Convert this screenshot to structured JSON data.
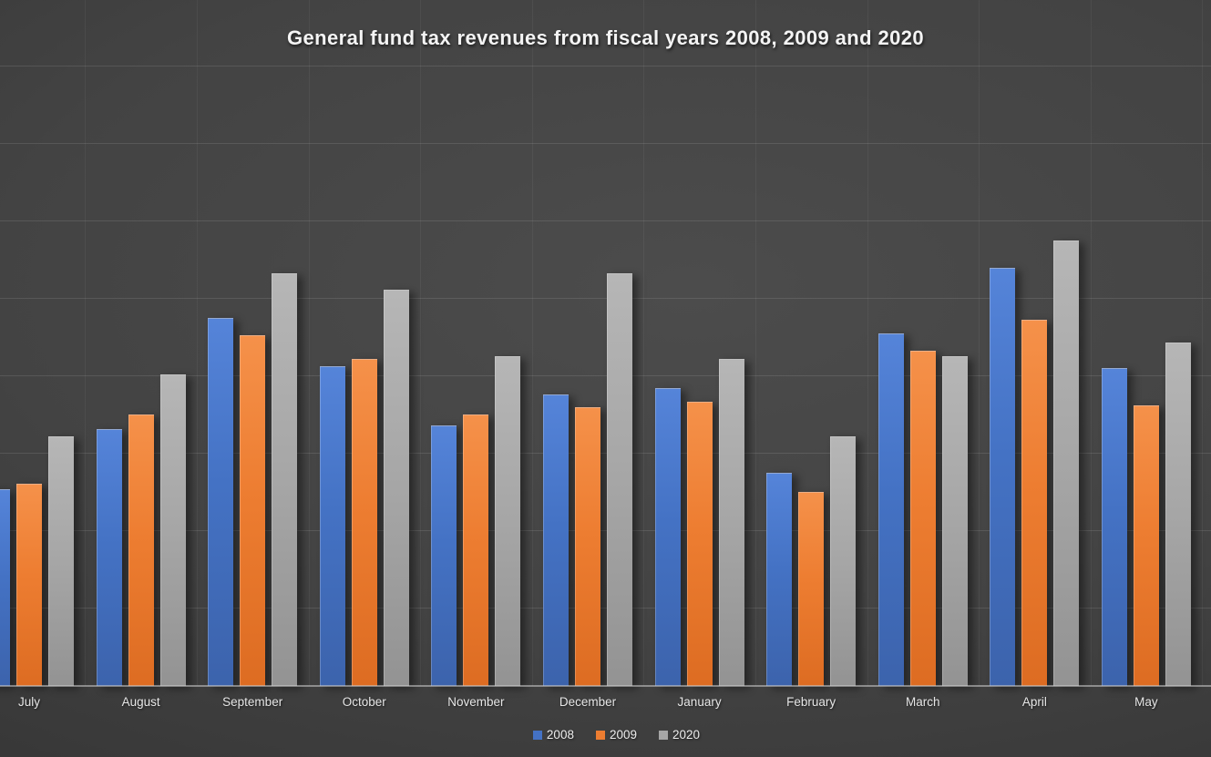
{
  "chart_data": {
    "type": "bar",
    "title": "General fund tax revenues from fiscal years 2008, 2009 and 2020",
    "categories": [
      "July",
      "August",
      "September",
      "October",
      "November",
      "December",
      "January",
      "February",
      "March",
      "April",
      "May"
    ],
    "series": [
      {
        "name": "2008",
        "color": "#4472C4",
        "values": [
          2.53,
          3.31,
          4.74,
          4.12,
          3.35,
          3.75,
          3.84,
          2.74,
          4.54,
          5.39,
          4.09
        ]
      },
      {
        "name": "2009",
        "color": "#ED7D31",
        "values": [
          2.6,
          3.49,
          4.52,
          4.21,
          3.49,
          3.59,
          3.66,
          2.49,
          4.32,
          4.72,
          3.61
        ]
      },
      {
        "name": "2020",
        "color": "#A6A6A6",
        "values": [
          3.21,
          4.01,
          5.32,
          5.11,
          4.25,
          5.32,
          4.21,
          3.21,
          4.25,
          5.74,
          4.42
        ]
      }
    ],
    "xlabel": "",
    "ylabel": "",
    "ylim": [
      0,
      8.85
    ],
    "gridline_interval": 1,
    "grid": "horizontal-major-and-faint-vertical",
    "legend_position": "bottom",
    "value_axis_labels_visible": false,
    "units": "gridline intervals (no value-axis labels shown in image)"
  },
  "colors": {
    "background": "#424242",
    "title_text": "#F4F4F4",
    "axis_line": "#BDBDBD",
    "gridline": "#5A5A5A",
    "series_2008": "#4472C4",
    "series_2009": "#ED7D31",
    "series_2020": "#A6A6A6"
  }
}
